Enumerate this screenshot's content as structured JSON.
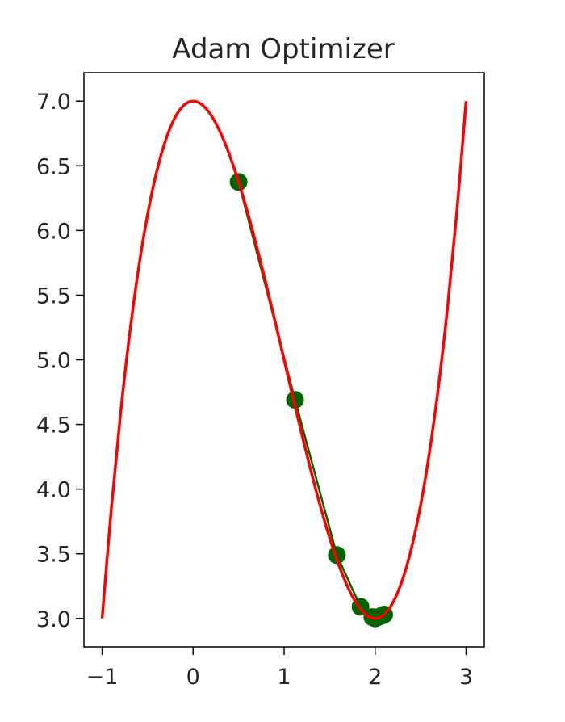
{
  "chart_data": {
    "type": "line",
    "title": "Adam Optimizer",
    "xlabel": "",
    "ylabel": "",
    "xlim": [
      -1.2,
      3.2
    ],
    "ylim": [
      2.78,
      7.22
    ],
    "xticks": [
      -1,
      0,
      1,
      2,
      3
    ],
    "xtick_labels": [
      "−1",
      "0",
      "1",
      "2",
      "3"
    ],
    "yticks": [
      3.0,
      3.5,
      4.0,
      4.5,
      5.0,
      5.5,
      6.0,
      6.5,
      7.0
    ],
    "ytick_labels": [
      "3.0",
      "3.5",
      "4.0",
      "4.5",
      "5.0",
      "5.5",
      "6.0",
      "6.5",
      "7.0"
    ],
    "grid": false,
    "legend": "none",
    "series": [
      {
        "kind": "curve",
        "color": "#ff0000",
        "x": [
          -1.0,
          -0.9,
          -0.8,
          -0.7,
          -0.6,
          -0.5,
          -0.4,
          -0.3,
          -0.2,
          -0.1,
          0.0,
          0.1,
          0.2,
          0.3,
          0.4,
          0.5,
          0.6,
          0.7,
          0.8,
          0.9,
          1.0,
          1.1,
          1.2,
          1.3,
          1.4,
          1.5,
          1.6,
          1.7,
          1.8,
          1.9,
          2.0,
          2.1,
          2.2,
          2.3,
          2.4,
          2.5,
          2.6,
          2.7,
          2.8,
          2.9,
          3.0
        ],
        "y": [
          3.0,
          3.841,
          4.568,
          5.187,
          5.704,
          6.125,
          6.456,
          6.703,
          6.872,
          6.969,
          7.0,
          6.971,
          6.888,
          6.757,
          6.584,
          6.375,
          6.136,
          5.873,
          5.592,
          5.299,
          5.0,
          4.701,
          4.408,
          4.127,
          3.864,
          3.625,
          3.416,
          3.243,
          3.112,
          3.029,
          3.0,
          3.031,
          3.128,
          3.297,
          3.544,
          3.875,
          4.296,
          4.813,
          5.432,
          6.159,
          7.0
        ]
      },
      {
        "kind": "path",
        "color": "#006400",
        "x": [
          0.5,
          1.12,
          1.58,
          1.84,
          1.97,
          2.0,
          2.03,
          2.07,
          2.1
        ],
        "y": [
          6.375,
          4.69,
          3.49,
          3.09,
          3.01,
          3.0,
          3.01,
          3.02,
          3.03
        ]
      }
    ]
  }
}
